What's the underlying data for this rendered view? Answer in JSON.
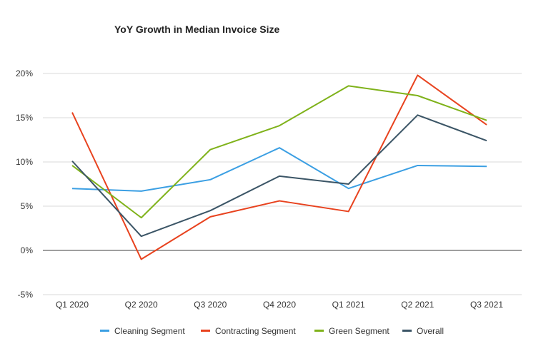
{
  "chart_data": {
    "type": "line",
    "title": "YoY Growth in Median Invoice Size",
    "categories": [
      "Q1 2020",
      "Q2 2020",
      "Q3 2020",
      "Q4 2020",
      "Q1 2021",
      "Q2 2021",
      "Q3 2021"
    ],
    "series": [
      {
        "name": "Cleaning Segment",
        "color": "#3b9fe3",
        "values": [
          7.0,
          6.7,
          8.0,
          11.6,
          7.0,
          9.6,
          9.5
        ]
      },
      {
        "name": "Contracting Segment",
        "color": "#e8421e",
        "values": [
          15.6,
          -1.0,
          3.8,
          5.6,
          4.4,
          19.8,
          14.2
        ]
      },
      {
        "name": "Green Segment",
        "color": "#7fb21a",
        "values": [
          9.6,
          3.7,
          11.4,
          14.1,
          18.6,
          17.5,
          14.7
        ]
      },
      {
        "name": "Overall",
        "color": "#3b5566",
        "values": [
          10.1,
          1.6,
          4.5,
          8.4,
          7.5,
          15.3,
          12.4
        ]
      }
    ],
    "yticks": [
      "20%",
      "15%",
      "10%",
      "5%",
      "0%",
      "-5%"
    ],
    "ytick_values": [
      20,
      15,
      10,
      5,
      0,
      -5
    ],
    "ylim": [
      -5,
      20
    ],
    "xlabel": "",
    "ylabel": "",
    "grid": true,
    "legend_position": "bottom"
  }
}
